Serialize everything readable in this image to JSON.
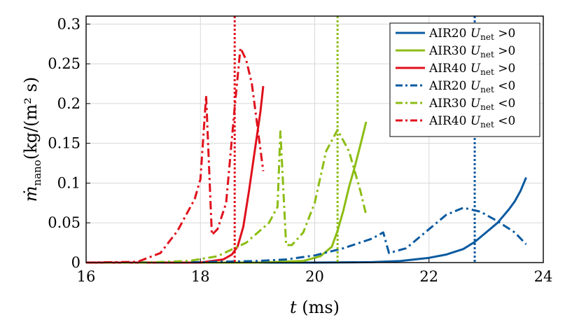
{
  "chart_data": {
    "type": "line",
    "xlabel": "t (ms)",
    "ylabel": "ṁnano(kg/(m² s)",
    "xlim": [
      16,
      24
    ],
    "ylim": [
      0,
      0.31
    ],
    "xticks": [
      "16",
      "18",
      "20",
      "22",
      "24"
    ],
    "yticks": [
      "0",
      "0.05",
      "0.1",
      "0.15",
      "0.2",
      "0.25",
      "0.3"
    ],
    "grid": true,
    "legend_position": "top-right",
    "colors": {
      "AIR20": "#0a5aa0",
      "AIR30": "#8cbd14",
      "AIR40": "#e0101c"
    },
    "series": [
      {
        "name": "AIR20 Unet >0",
        "color": "#0a5aa0",
        "style": "solid",
        "x": [
          16,
          18,
          20,
          21,
          21.5,
          22,
          22.3,
          22.6,
          22.8,
          23,
          23.2,
          23.4,
          23.5,
          23.6,
          23.7
        ],
        "y": [
          0,
          0,
          0,
          0.0005,
          0.002,
          0.006,
          0.01,
          0.017,
          0.026,
          0.038,
          0.05,
          0.067,
          0.077,
          0.09,
          0.107
        ]
      },
      {
        "name": "AIR30 Unet >0",
        "color": "#8cbd14",
        "style": "solid",
        "x": [
          16,
          19,
          19.8,
          20.1,
          20.3,
          20.4,
          20.5,
          20.6,
          20.7,
          20.8,
          20.9
        ],
        "y": [
          0,
          0,
          0.002,
          0.008,
          0.02,
          0.04,
          0.065,
          0.095,
          0.12,
          0.148,
          0.177
        ]
      },
      {
        "name": "AIR40 Unet >0",
        "color": "#e0101c",
        "style": "solid",
        "x": [
          16,
          18,
          18.4,
          18.55,
          18.65,
          18.75,
          18.85,
          18.95,
          19.05,
          19.1
        ],
        "y": [
          0,
          0,
          0.004,
          0.01,
          0.02,
          0.045,
          0.09,
          0.14,
          0.19,
          0.222
        ]
      },
      {
        "name": "AIR20 Unet <0",
        "color": "#0a5aa0",
        "style": "dashdot",
        "x": [
          16,
          18,
          19,
          19.5,
          20,
          20.5,
          21,
          21.2,
          21.3,
          21.6,
          22,
          22.3,
          22.6,
          22.9,
          23.2,
          23.5,
          23.7
        ],
        "y": [
          0,
          0.0005,
          0.002,
          0.004,
          0.009,
          0.018,
          0.03,
          0.038,
          0.012,
          0.018,
          0.042,
          0.06,
          0.069,
          0.064,
          0.052,
          0.038,
          0.023
        ]
      },
      {
        "name": "AIR30 Unet <0",
        "color": "#8cbd14",
        "style": "dashdot",
        "x": [
          16,
          17,
          17.8,
          18.3,
          18.8,
          19.2,
          19.35,
          19.4,
          19.5,
          19.6,
          19.8,
          20,
          20.2,
          20.4,
          20.6,
          20.8,
          20.9
        ],
        "y": [
          0,
          0,
          0.002,
          0.008,
          0.025,
          0.05,
          0.07,
          0.165,
          0.022,
          0.022,
          0.038,
          0.075,
          0.14,
          0.167,
          0.14,
          0.09,
          0.06
        ]
      },
      {
        "name": "AIR40 Unet <0",
        "color": "#e0101c",
        "style": "dashdot",
        "x": [
          16,
          16.9,
          17.3,
          17.6,
          17.9,
          18.0,
          18.1,
          18.2,
          18.3,
          18.45,
          18.6,
          18.7,
          18.8,
          18.9,
          19.0,
          19.1
        ],
        "y": [
          0,
          0.001,
          0.012,
          0.04,
          0.08,
          0.105,
          0.21,
          0.035,
          0.042,
          0.075,
          0.195,
          0.27,
          0.255,
          0.225,
          0.17,
          0.115
        ]
      }
    ],
    "vlines": [
      {
        "x": 18.6,
        "color": "#e0101c"
      },
      {
        "x": 20.4,
        "color": "#8cbd14"
      },
      {
        "x": 22.8,
        "color": "#0a5aa0"
      }
    ]
  }
}
